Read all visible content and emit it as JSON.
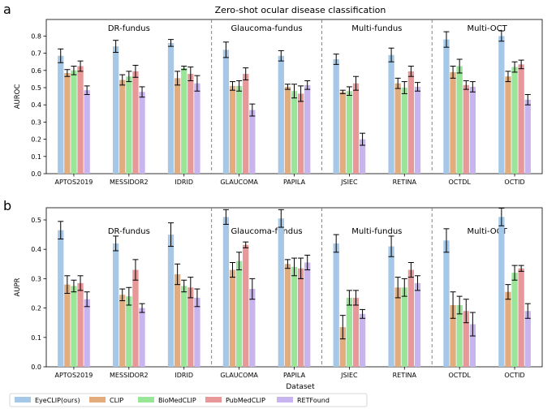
{
  "figure": {
    "panel_labels": [
      "a",
      "b"
    ],
    "title": "Zero-shot ocular disease classification",
    "xlabel": "Dataset"
  },
  "chart_data": [
    {
      "type": "bar",
      "panel": "a",
      "title": "Zero-shot ocular disease classification",
      "xlabel": "",
      "ylabel": "AUROC",
      "ylim": [
        0,
        0.85
      ],
      "yticks": [
        "0.0",
        "0.1",
        "0.2",
        "0.3",
        "0.4",
        "0.5",
        "0.6",
        "0.7",
        "0.8"
      ],
      "grid": false,
      "groups": [
        {
          "label": "DR-fundus",
          "categories": [
            0,
            1,
            2
          ]
        },
        {
          "label": "Glaucoma-fundus",
          "categories": [
            3,
            4
          ]
        },
        {
          "label": "Multi-fundus",
          "categories": [
            5,
            6
          ]
        },
        {
          "label": "Multi-OCT",
          "categories": [
            7,
            8
          ]
        }
      ],
      "categories": [
        "APTOS2019",
        "MESSIDOR2",
        "IDRID",
        "GLAUCOMA",
        "PAPILA",
        "JSIEC",
        "RETINA",
        "OCTDL",
        "OCTID"
      ],
      "series": [
        {
          "name": "EyeCLIP(ours)",
          "color": "#a6c8e8",
          "values": [
            0.685,
            0.74,
            0.76,
            0.72,
            0.685,
            0.665,
            0.69,
            0.78,
            0.8
          ],
          "errors": [
            0.04,
            0.035,
            0.02,
            0.045,
            0.03,
            0.03,
            0.04,
            0.045,
            0.03
          ]
        },
        {
          "name": "CLIP",
          "color": "#e2ac7c",
          "values": [
            0.585,
            0.545,
            0.555,
            0.51,
            0.505,
            0.475,
            0.525,
            0.59,
            0.565
          ],
          "errors": [
            0.02,
            0.03,
            0.04,
            0.025,
            0.015,
            0.01,
            0.03,
            0.035,
            0.03
          ]
        },
        {
          "name": "BioMedCLIP",
          "color": "#99e699",
          "values": [
            0.6,
            0.565,
            0.615,
            0.51,
            0.48,
            0.48,
            0.5,
            0.625,
            0.62
          ],
          "errors": [
            0.025,
            0.03,
            0.01,
            0.03,
            0.04,
            0.025,
            0.035,
            0.04,
            0.03
          ]
        },
        {
          "name": "PubMedCLIP",
          "color": "#e89898",
          "values": [
            0.625,
            0.595,
            0.58,
            0.58,
            0.465,
            0.525,
            0.595,
            0.515,
            0.635
          ],
          "errors": [
            0.03,
            0.035,
            0.04,
            0.035,
            0.045,
            0.04,
            0.03,
            0.025,
            0.025
          ]
        },
        {
          "name": "RETFound",
          "color": "#c8b4ee",
          "values": [
            0.485,
            0.475,
            0.525,
            0.37,
            0.515,
            0.2,
            0.505,
            0.505,
            0.43
          ],
          "errors": [
            0.025,
            0.03,
            0.045,
            0.035,
            0.025,
            0.035,
            0.025,
            0.03,
            0.03
          ]
        }
      ]
    },
    {
      "type": "bar",
      "panel": "b",
      "title": "",
      "xlabel": "Dataset",
      "ylabel": "AUPR",
      "ylim": [
        0,
        0.55
      ],
      "yticks": [
        "0.0",
        "0.1",
        "0.2",
        "0.3",
        "0.4",
        "0.5"
      ],
      "grid": false,
      "groups": [
        {
          "label": "DR-fundus",
          "categories": [
            0,
            1,
            2
          ]
        },
        {
          "label": "Glaucoma-fundus",
          "categories": [
            3,
            4
          ]
        },
        {
          "label": "Multi-fundus",
          "categories": [
            5,
            6
          ]
        },
        {
          "label": "Multi-OCT",
          "categories": [
            7,
            8
          ]
        }
      ],
      "categories": [
        "APTOS2019",
        "MESSIDOR2",
        "IDRID",
        "GLAUCOMA",
        "PAPILA",
        "JSIEC",
        "RETINA",
        "OCTDL",
        "OCTID"
      ],
      "series": [
        {
          "name": "EyeCLIP(ours)",
          "color": "#a6c8e8",
          "values": [
            0.465,
            0.42,
            0.45,
            0.51,
            0.505,
            0.42,
            0.41,
            0.43,
            0.51
          ],
          "errors": [
            0.03,
            0.025,
            0.04,
            0.025,
            0.03,
            0.03,
            0.035,
            0.04,
            0.03
          ]
        },
        {
          "name": "CLIP",
          "color": "#e2ac7c",
          "values": [
            0.28,
            0.245,
            0.315,
            0.33,
            0.35,
            0.135,
            0.27,
            0.21,
            0.255
          ],
          "errors": [
            0.03,
            0.02,
            0.035,
            0.025,
            0.015,
            0.04,
            0.035,
            0.045,
            0.025
          ]
        },
        {
          "name": "BioMedCLIP",
          "color": "#99e699",
          "values": [
            0.275,
            0.24,
            0.275,
            0.36,
            0.34,
            0.235,
            0.27,
            0.21,
            0.32
          ],
          "errors": [
            0.02,
            0.03,
            0.02,
            0.03,
            0.03,
            0.025,
            0.03,
            0.03,
            0.025
          ]
        },
        {
          "name": "PubMedCLIP",
          "color": "#e89898",
          "values": [
            0.285,
            0.33,
            0.27,
            0.415,
            0.335,
            0.235,
            0.33,
            0.19,
            0.335
          ],
          "errors": [
            0.025,
            0.035,
            0.035,
            0.01,
            0.035,
            0.025,
            0.025,
            0.04,
            0.01
          ]
        },
        {
          "name": "RETFound",
          "color": "#c8b4ee",
          "values": [
            0.23,
            0.2,
            0.235,
            0.265,
            0.355,
            0.18,
            0.285,
            0.145,
            0.19
          ],
          "errors": [
            0.025,
            0.015,
            0.03,
            0.035,
            0.025,
            0.015,
            0.025,
            0.04,
            0.025
          ]
        }
      ]
    }
  ]
}
